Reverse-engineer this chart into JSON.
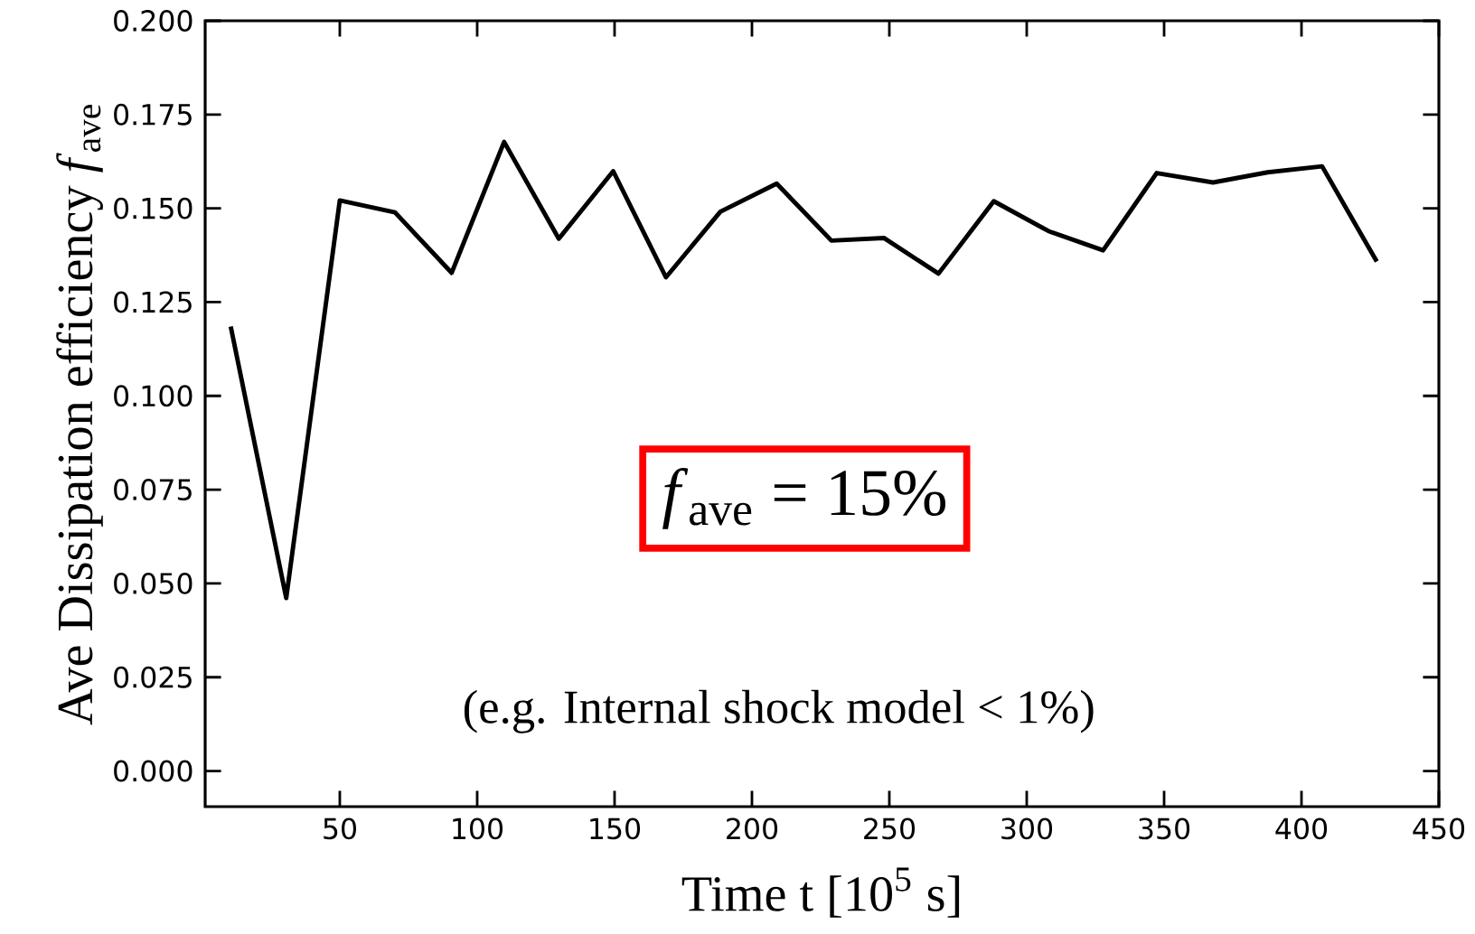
{
  "chart_data": {
    "type": "line",
    "xlabel": "Time t [10$^{5}$ s]",
    "ylabel": "Ave Dissipation efficiency *f*$_{ave}$",
    "annotations": [
      "*f*$_{ave}$ = 15%",
      "(e.g. Internal shock model < 1%)"
    ],
    "x": [
      10.3,
      30.5,
      50,
      70.1,
      90.7,
      109.8,
      129.7,
      149.5,
      168.7,
      188.5,
      209,
      228.9,
      248,
      267.9,
      288,
      308,
      327.8,
      347.3,
      367.8,
      387.7,
      407.5,
      427.4
    ],
    "series": [
      {
        "color": "#000000",
        "values": [
          0.1185,
          0.0461,
          0.1521,
          0.1489,
          0.1328,
          0.1677,
          0.1419,
          0.1599,
          0.1316,
          0.1491,
          0.1566,
          0.1414,
          0.1421,
          0.1326,
          0.1519,
          0.1439,
          0.1388,
          0.1594,
          0.1569,
          0.1596,
          0.1612,
          0.1358
        ]
      }
    ],
    "xlim": [
      1,
      450
    ],
    "ylim": [
      -0.0095,
      0.2
    ],
    "xticks": [
      50,
      100,
      150,
      200,
      250,
      300,
      350,
      400,
      450
    ],
    "yticks": [
      {
        "value": 0,
        "label": "0.000"
      },
      {
        "value": 0.025,
        "label": "0.025"
      },
      {
        "value": 0.05,
        "label": "0.050"
      },
      {
        "value": 0.075,
        "label": "0.075"
      },
      {
        "value": 0.1,
        "label": "0.100"
      },
      {
        "value": 0.125,
        "label": "0.125"
      },
      {
        "value": 0.15,
        "label": "0.150"
      },
      {
        "value": 0.175,
        "label": "0.175"
      },
      {
        "value": 0.2,
        "label": "0.200"
      }
    ],
    "grid": false,
    "legend": false,
    "marker": "none",
    "line_style": "solid"
  }
}
